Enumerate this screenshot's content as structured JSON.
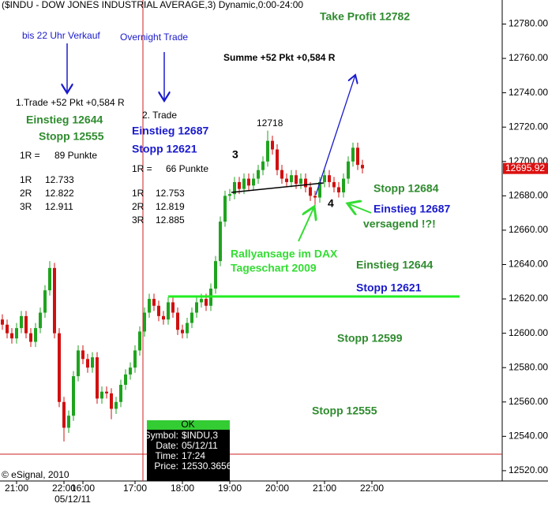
{
  "chart_data": {
    "type": "candlestick",
    "title": "($INDU - DOW JONES INDUSTRIAL AVERAGE,3) Dynamic,0:00-24:00",
    "categories": [
      null,
      null,
      null,
      "21:00",
      null,
      null,
      null,
      null,
      null,
      null,
      null,
      null,
      null,
      "22:00",
      null,
      null,
      null,
      "16:00",
      null,
      null,
      null,
      null,
      null,
      null,
      null,
      null,
      null,
      null,
      "17:00",
      null,
      null,
      null,
      null,
      null,
      null,
      null,
      null,
      null,
      "18:00",
      null,
      null,
      null,
      null,
      null,
      null,
      null,
      null,
      null,
      "19:00",
      null,
      null,
      null,
      null,
      null,
      null,
      null,
      null,
      null,
      "20:00",
      null,
      null,
      null,
      null,
      null,
      null,
      null,
      null,
      null,
      "21:00",
      null,
      null,
      null,
      null,
      null,
      null,
      null,
      null,
      null,
      "22:00",
      null
    ],
    "x_date_label": "05/12/11",
    "open": [
      12608,
      12605,
      12600,
      12597,
      12603,
      12610,
      12600,
      12595,
      12603,
      12612,
      12625,
      12638,
      12600,
      12560,
      12545,
      12552,
      12575,
      12590,
      12585,
      12580,
      12586,
      12562,
      12566,
      12565,
      12556,
      12560,
      12570,
      12576,
      12580,
      12590,
      12601,
      12612,
      12620,
      12616,
      12610,
      12608,
      12618,
      12612,
      12602,
      12600,
      12606,
      12612,
      12618,
      12620,
      12616,
      12626,
      12642,
      12665,
      12680,
      12681,
      12688,
      12684,
      12690,
      12686,
      12690,
      12695,
      12700,
      12712,
      12707,
      12695,
      12690,
      12688,
      12692,
      12687,
      12690,
      12685,
      12680,
      12679,
      12688,
      12692,
      12688,
      12685,
      12682,
      12690,
      12700,
      12708,
      12698,
      null,
      null,
      null
    ],
    "high": [
      12611,
      12608,
      12603,
      12606,
      12613,
      12613,
      12603,
      12606,
      12615,
      12628,
      12642,
      12641,
      12603,
      12563,
      12555,
      12578,
      12593,
      12593,
      12588,
      12589,
      12589,
      12569,
      12569,
      12568,
      12563,
      12573,
      12579,
      12583,
      12593,
      12604,
      12615,
      12623,
      12623,
      12619,
      12613,
      12621,
      12621,
      12615,
      12605,
      12609,
      12615,
      12621,
      12623,
      12623,
      12629,
      12645,
      12668,
      12683,
      12684,
      12691,
      12691,
      12693,
      12693,
      12693,
      12698,
      12703,
      12718,
      12715,
      12710,
      12698,
      12693,
      12695,
      12695,
      12693,
      12693,
      12688,
      12683,
      12691,
      12695,
      12695,
      12691,
      12688,
      12693,
      12703,
      12711,
      12711,
      12701,
      null,
      null,
      null
    ],
    "low": [
      12602,
      12597,
      12594,
      12594,
      12600,
      12597,
      12592,
      12592,
      12600,
      12609,
      12622,
      12597,
      12557,
      12537,
      12542,
      12549,
      12572,
      12582,
      12577,
      12577,
      12559,
      12559,
      12562,
      12550,
      12553,
      12557,
      12567,
      12573,
      12577,
      12587,
      12598,
      12609,
      12613,
      12607,
      12605,
      12605,
      12609,
      12599,
      12597,
      12597,
      12603,
      12609,
      12615,
      12613,
      12613,
      12623,
      12639,
      12662,
      12677,
      12678,
      12681,
      12681,
      12683,
      12683,
      12687,
      12692,
      12697,
      12704,
      12692,
      12687,
      12685,
      12685,
      12684,
      12684,
      12682,
      12677,
      12672,
      12676,
      12685,
      12685,
      12682,
      12679,
      12679,
      12687,
      12697,
      12695,
      12693,
      null,
      null,
      null
    ],
    "close": [
      12605,
      12600,
      12597,
      12603,
      12610,
      12600,
      12595,
      12603,
      12612,
      12625,
      12638,
      12600,
      12560,
      12545,
      12552,
      12575,
      12590,
      12585,
      12580,
      12586,
      12562,
      12566,
      12565,
      12556,
      12560,
      12570,
      12576,
      12580,
      12590,
      12601,
      12612,
      12620,
      12616,
      12610,
      12608,
      12618,
      12612,
      12602,
      12600,
      12606,
      12612,
      12618,
      12620,
      12616,
      12626,
      12642,
      12665,
      12680,
      12681,
      12688,
      12684,
      12690,
      12686,
      12690,
      12695,
      12700,
      12712,
      12707,
      12695,
      12690,
      12688,
      12692,
      12687,
      12690,
      12685,
      12680,
      12679,
      12688,
      12692,
      12688,
      12685,
      12682,
      12690,
      12700,
      12708,
      12698,
      12696,
      null,
      null,
      null
    ],
    "up_color": "#1fa31f",
    "down_color": "#d01010",
    "ylim": [
      12514,
      12794
    ],
    "yticks": [
      {
        "value": 12520,
        "label": "12520.00"
      },
      {
        "value": 12540,
        "label": "12540.00"
      },
      {
        "value": 12560,
        "label": "12560.00"
      },
      {
        "value": 12580,
        "label": "12580.00"
      },
      {
        "value": 12600,
        "label": "12600.00"
      },
      {
        "value": 12620,
        "label": "12620.00"
      },
      {
        "value": 12640,
        "label": "12640.00"
      },
      {
        "value": 12660,
        "label": "12660.00"
      },
      {
        "value": 12680,
        "label": "12680.00"
      },
      {
        "value": 12700,
        "label": "12700.00"
      },
      {
        "value": 12720,
        "label": "12720.00"
      },
      {
        "value": 12740,
        "label": "12740.00"
      },
      {
        "value": 12760,
        "label": "12760.00"
      },
      {
        "value": 12780,
        "label": "12780.00"
      }
    ],
    "last_price": 12695.92,
    "annotations": [
      "Take Profit 12782",
      "bis 22 Uhr Verkauf",
      "Overnight Trade",
      "Summe +52 Pkt +0,584 R",
      "1.Trade +52 Pkt +0,584 R",
      "Einstieg 12644",
      "Stopp 12555",
      "1R =",
      "89 Punkte",
      "1R",
      "12.733",
      "2R",
      "12.822",
      "3R",
      "12.911",
      "2. Trade",
      "Einstieg 12687",
      "Stopp 12621",
      "1R =",
      "66 Punkte",
      "1R",
      "12.753",
      "2R",
      "12.819",
      "3R",
      "12.885",
      "12718",
      "3",
      "4",
      "Stopp 12684",
      "Einstieg 12687",
      "versagend !?!",
      "Rallyansage im DAX",
      "Tageschart 2009",
      "Einstieg 12644",
      "Stopp 12621",
      "Stopp 12599",
      "Stopp 12555"
    ],
    "info_box": {
      "header": "OK",
      "rows": [
        [
          "Symbol:",
          "$INDU,3"
        ],
        [
          "Date:",
          "05/12/11"
        ],
        [
          "Time:",
          "17:24"
        ],
        [
          "Price:",
          "12530.3656"
        ]
      ]
    },
    "copyright": "© eSignal, 2010"
  }
}
